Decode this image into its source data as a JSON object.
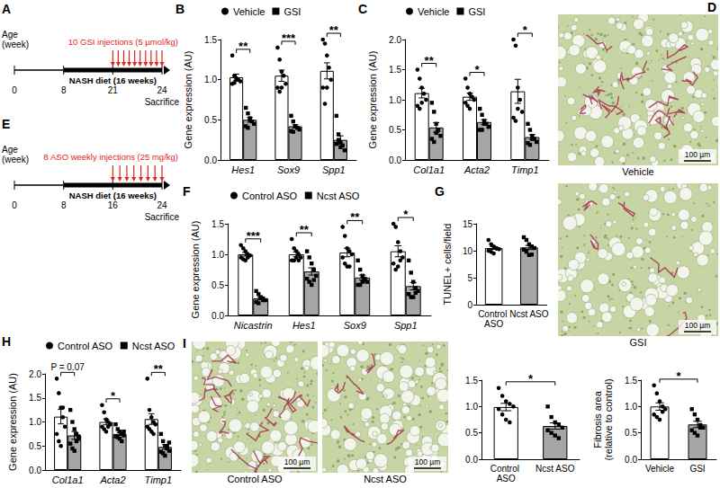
{
  "chart_data": [
    {
      "panel": "B",
      "type": "bar",
      "ylabel": "Gene expression (AU)",
      "categories": [
        "Hes1",
        "Sox9",
        "Spp1"
      ],
      "series": [
        {
          "name": "Vehicle",
          "color": "#ffffff",
          "marker": "circle",
          "values": [
            1.03,
            1.05,
            1.11
          ],
          "errors": [
            0.04,
            0.07,
            0.1
          ],
          "points": [
            [
              1.3,
              1.05,
              1.02,
              1.0,
              0.98,
              0.95,
              0.96,
              1.0
            ],
            [
              1.4,
              1.25,
              1.1,
              1.05,
              0.95,
              0.9,
              0.85,
              0.9
            ],
            [
              1.5,
              1.45,
              1.3,
              1.15,
              1.0,
              0.9,
              0.7,
              0.9
            ]
          ]
        },
        {
          "name": "GSI",
          "color": "#a6a6a6",
          "marker": "square",
          "values": [
            0.5,
            0.42,
            0.25
          ],
          "errors": [
            0.03,
            0.02,
            0.05
          ],
          "points": [
            [
              0.65,
              0.58,
              0.52,
              0.48,
              0.45,
              0.42,
              0.4,
              0.5
            ],
            [
              0.55,
              0.48,
              0.42,
              0.4,
              0.38,
              0.36,
              0.35,
              0.42
            ],
            [
              0.55,
              0.32,
              0.22,
              0.18,
              0.12,
              0.2,
              0.25,
              0.16
            ]
          ]
        }
      ],
      "significance": [
        "**",
        "***",
        "**"
      ],
      "ylim": [
        0,
        1.5
      ],
      "yticks": [
        {
          "value": 0,
          "label": "0.0"
        },
        0.5,
        {
          "value": 1,
          "label": "1.0"
        },
        1.5
      ],
      "legend": "upper left",
      "grid": false
    },
    {
      "panel": "C",
      "type": "bar",
      "ylabel": "Gene expression (AU)",
      "categories": [
        "Col1a1",
        "Acta2",
        "Timp1"
      ],
      "series": [
        {
          "name": "Vehicle",
          "color": "#ffffff",
          "marker": "circle",
          "values": [
            1.11,
            1.05,
            1.14
          ],
          "errors": [
            0.08,
            0.06,
            0.2
          ],
          "points": [
            [
              1.5,
              1.35,
              1.2,
              1.1,
              1.0,
              0.9,
              0.85,
              0.95
            ],
            [
              1.35,
              1.2,
              1.1,
              1.05,
              1.0,
              0.95,
              0.9,
              0.85
            ],
            [
              2.0,
              1.9,
              1.2,
              1.0,
              0.8,
              0.7,
              0.65,
              0.85
            ]
          ]
        },
        {
          "name": "GSI",
          "color": "#a6a6a6",
          "marker": "square",
          "values": [
            0.54,
            0.63,
            0.38
          ],
          "errors": [
            0.08,
            0.04,
            0.04
          ],
          "points": [
            [
              0.95,
              0.8,
              0.6,
              0.5,
              0.4,
              0.35,
              0.3,
              0.45
            ],
            [
              0.85,
              0.75,
              0.65,
              0.6,
              0.55,
              0.5,
              0.5,
              0.6
            ],
            [
              0.6,
              0.5,
              0.4,
              0.35,
              0.3,
              0.28,
              0.25,
              0.35
            ]
          ]
        }
      ],
      "significance": [
        "**",
        "*",
        "*"
      ],
      "ylim": [
        0,
        2
      ],
      "yticks": [
        {
          "value": 0,
          "label": "0.0"
        },
        0.5,
        {
          "value": 1,
          "label": "1.0"
        },
        1.5,
        {
          "value": 2,
          "label": "2.0"
        }
      ],
      "legend": "upper left",
      "grid": false
    },
    {
      "panel": "F",
      "type": "bar",
      "ylabel": "Gene expression (AU)",
      "categories": [
        "Nicastrin",
        "Hes1",
        "Sox9",
        "Spp1"
      ],
      "series": [
        {
          "name": "Control ASO",
          "color": "#ffffff",
          "marker": "circle",
          "values": [
            1.0,
            1.0,
            1.03,
            1.05
          ],
          "errors": [
            0.03,
            0.04,
            0.07,
            0.09
          ],
          "points": [
            [
              1.15,
              1.1,
              1.05,
              1.0,
              0.98,
              0.95,
              0.92,
              0.9,
              0.95
            ],
            [
              1.25,
              1.1,
              1.05,
              1.0,
              0.95,
              0.9,
              0.9,
              0.95,
              0.9
            ],
            [
              1.45,
              1.3,
              1.1,
              1.05,
              1.0,
              0.95,
              0.85,
              0.8,
              0.8
            ],
            [
              1.5,
              1.45,
              1.2,
              1.05,
              0.95,
              0.85,
              0.75,
              0.8,
              0.9
            ]
          ]
        },
        {
          "name": "Ncst ASO",
          "color": "#a6a6a6",
          "marker": "square",
          "values": [
            0.28,
            0.72,
            0.62,
            0.48
          ],
          "errors": [
            0.02,
            0.06,
            0.04,
            0.06
          ],
          "points": [
            [
              0.4,
              0.35,
              0.3,
              0.28,
              0.25,
              0.22,
              0.2,
              0.28,
              0.25
            ],
            [
              1.05,
              0.95,
              0.85,
              0.75,
              0.65,
              0.6,
              0.55,
              0.5,
              0.58
            ],
            [
              0.9,
              0.75,
              0.65,
              0.6,
              0.55,
              0.5,
              0.5,
              0.55,
              0.58
            ],
            [
              0.9,
              0.7,
              0.55,
              0.45,
              0.4,
              0.35,
              0.3,
              0.3,
              0.37
            ]
          ]
        }
      ],
      "significance": [
        "***",
        "**",
        "**",
        "*"
      ],
      "ylim": [
        0,
        1.5
      ],
      "yticks": [
        {
          "value": 0,
          "label": "0.0"
        },
        0.5,
        {
          "value": 1,
          "label": "1.0"
        },
        1.5
      ],
      "legend": "upper left",
      "grid": false
    },
    {
      "panel": "G",
      "type": "bar",
      "ylabel": "TUNEL+ cells/field",
      "categories": [
        "Control ASO",
        "Ncst ASO"
      ],
      "series": [
        {
          "name": "Control ASO",
          "color": "#ffffff",
          "marker": "circle",
          "values": [
            10.5,
            null
          ],
          "errors": [
            0.25,
            null
          ],
          "points": [
            [
              12.0,
              11.2,
              10.8,
              10.5,
              10.3,
              10.0,
              9.8,
              9.5,
              10.4
            ],
            null
          ]
        },
        {
          "name": "Ncst ASO",
          "color": "#a6a6a6",
          "marker": "square",
          "values": [
            null,
            10.61
          ],
          "errors": [
            null,
            0.38
          ],
          "points": [
            null,
            [
              12.5,
              12.0,
              11.2,
              10.8,
              10.5,
              10.2,
              9.8,
              9.2,
              9.3
            ]
          ]
        }
      ],
      "ylim": [
        0,
        15
      ],
      "yticks": [
        0,
        5,
        10,
        15
      ],
      "grid": false
    },
    {
      "panel": "H",
      "type": "bar",
      "ylabel": "Gene expression (AU)",
      "categories": [
        "Col1a1",
        "Acta2",
        "Timp1"
      ],
      "series": [
        {
          "name": "Control ASO",
          "color": "#ffffff",
          "marker": "circle",
          "values": [
            1.11,
            1.0,
            1.06
          ],
          "errors": [
            0.15,
            0.06,
            0.11
          ],
          "points": [
            [
              1.9,
              1.6,
              1.3,
              1.1,
              0.9,
              0.75,
              0.6,
              0.5,
              1.3
            ],
            [
              1.35,
              1.2,
              1.05,
              1.0,
              0.95,
              0.9,
              0.85,
              0.8,
              0.9
            ],
            [
              1.9,
              1.25,
              1.1,
              1.0,
              0.95,
              0.9,
              0.85,
              0.8,
              0.75
            ]
          ]
        },
        {
          "name": "Ncst ASO",
          "color": "#a6a6a6",
          "marker": "square",
          "values": [
            0.72,
            0.75,
            0.48
          ],
          "errors": [
            0.08,
            0.03,
            0.05
          ],
          "points": [
            [
              1.25,
              1.0,
              0.85,
              0.75,
              0.65,
              0.55,
              0.45,
              0.4,
              0.6,
              0.7
            ],
            [
              0.95,
              0.85,
              0.8,
              0.75,
              0.72,
              0.7,
              0.68,
              0.65,
              0.6,
              0.8
            ],
            [
              0.75,
              0.6,
              0.5,
              0.45,
              0.4,
              0.38,
              0.35,
              0.3,
              0.5,
              0.57
            ]
          ]
        }
      ],
      "significance": [
        "P = 0.07",
        "*",
        "**"
      ],
      "ylim": [
        0,
        2
      ],
      "yticks": [
        {
          "value": 0,
          "label": "0.0"
        },
        0.5,
        {
          "value": 1,
          "label": "1.0"
        },
        1.5,
        {
          "value": 2,
          "label": "2.0"
        }
      ],
      "legend": "upper left",
      "grid": false
    },
    {
      "type": "bar",
      "categories": [
        "Control ASO",
        "Ncst ASO"
      ],
      "series": [
        {
          "name": "Control ASO",
          "color": "#ffffff",
          "marker": "circle",
          "values": [
            0.99,
            null
          ],
          "errors": [
            0.07,
            null
          ],
          "points": [
            [
              1.35,
              1.2,
              1.1,
              1.05,
              1.0,
              0.95,
              0.85,
              0.75,
              0.7
            ],
            null
          ]
        },
        {
          "name": "Ncst ASO",
          "color": "#a6a6a6",
          "marker": "square",
          "values": [
            null,
            0.63
          ],
          "errors": [
            null,
            0.06
          ],
          "points": [
            null,
            [
              1.0,
              0.8,
              0.7,
              0.65,
              0.6,
              0.55,
              0.5,
              0.45,
              0.4
            ]
          ]
        }
      ],
      "significance": "*",
      "ylim": [
        0,
        1.5
      ],
      "yticks": [
        {
          "value": 0,
          "label": "0.0"
        },
        0.5,
        {
          "value": 1,
          "label": "1.0"
        },
        1.5
      ],
      "grid": false
    },
    {
      "type": "bar",
      "ylabel": "Fibrosis area\n(relative to control)",
      "categories": [
        "Vehicle",
        "GSI"
      ],
      "series": [
        {
          "name": "Vehicle",
          "color": "#ffffff",
          "marker": "circle",
          "values": [
            1.0,
            null
          ],
          "errors": [
            0.07,
            null
          ],
          "points": [
            [
              1.4,
              1.25,
              1.1,
              1.0,
              0.95,
              0.85,
              0.8,
              0.75,
              0.9
            ],
            null
          ]
        },
        {
          "name": "GSI",
          "color": "#a6a6a6",
          "marker": "square",
          "values": [
            null,
            0.66
          ],
          "errors": [
            null,
            0.06
          ],
          "points": [
            null,
            [
              0.95,
              0.85,
              0.75,
              0.65,
              0.6,
              0.55,
              0.5,
              0.45,
              0.6
            ]
          ]
        }
      ],
      "significance": "*",
      "ylim": [
        0,
        1.5
      ],
      "yticks": [
        {
          "value": 0,
          "label": "0.0"
        },
        0.5,
        {
          "value": 1,
          "label": "1.0"
        },
        1.5
      ],
      "grid": false
    }
  ],
  "timelines": [
    {
      "panel": "A",
      "axis_label": [
        "Age",
        "(week)"
      ],
      "ticks": [
        0,
        8,
        21,
        24
      ],
      "diet_text": "NASH diet (16 weeks)",
      "diet_from": 8,
      "diet_to": 24,
      "injection_text": "10 GSI injections (5 µmol/kg)",
      "injections": 10,
      "injection_from": 21,
      "injection_to": 24,
      "end_text": "Sacrifice"
    },
    {
      "panel": "E",
      "axis_label": [
        "Age",
        "(week)"
      ],
      "ticks": [
        0,
        8,
        16,
        24
      ],
      "diet_text": "NASH diet (16 weeks)",
      "diet_from": 8,
      "diet_to": 24,
      "injection_text": "8 ASO weekly injections (25 mg/kg)",
      "injections": 8,
      "injection_from": 16,
      "injection_to": 24,
      "end_text": "Sacrifice"
    }
  ],
  "images": [
    {
      "panel": "D",
      "caption": "Vehicle",
      "scale_bar": "100 µm"
    },
    {
      "caption": "GSI",
      "scale_bar": "100 µm"
    },
    {
      "panel": "I",
      "caption": "Control ASO",
      "scale_bar": "100 µm"
    },
    {
      "caption": "Ncst ASO",
      "scale_bar": "100 µm"
    }
  ]
}
